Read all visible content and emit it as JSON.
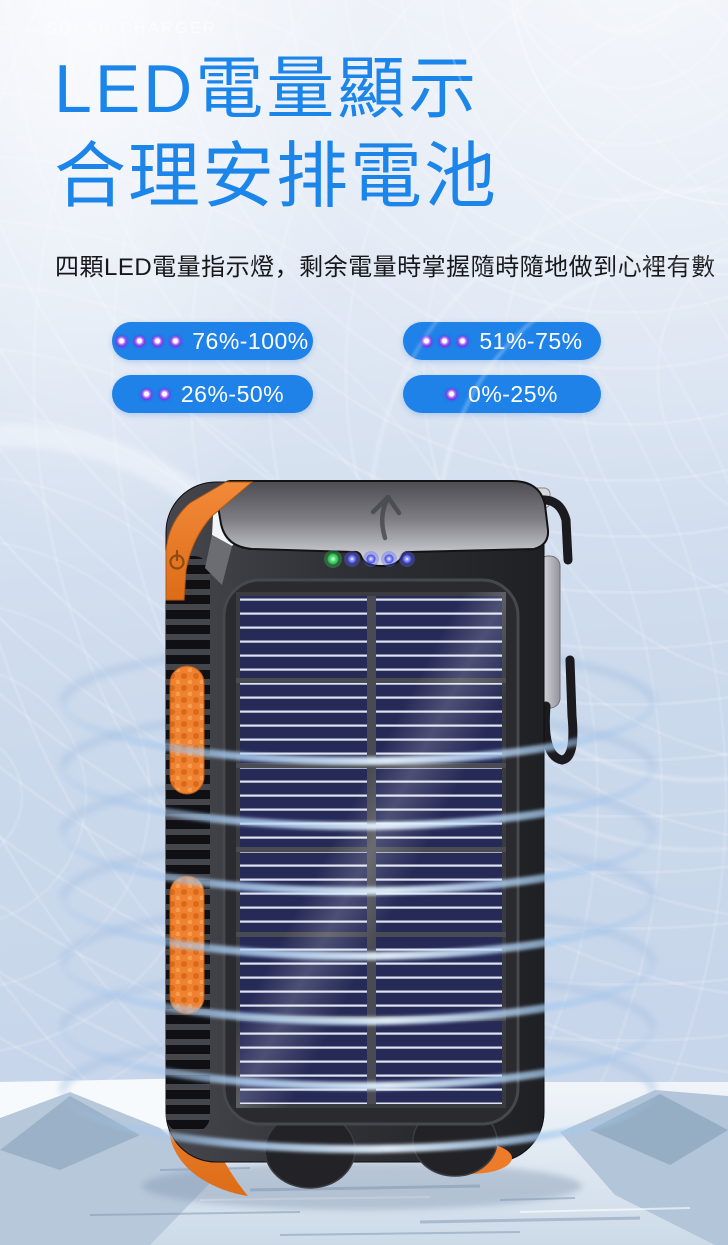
{
  "header": {
    "eyebrow": "SOLAR CHARGER",
    "title_line1": "LED電量顯示",
    "title_line2": "合理安排電池",
    "description": "四顆LED電量指示燈，剩余電量時掌握隨時隨地做到心裡有數"
  },
  "battery_legend": {
    "items": [
      {
        "label": "76%-100%",
        "led_count": 4
      },
      {
        "label": "51%-75%",
        "led_count": 3
      },
      {
        "label": "26%-50%",
        "led_count": 2
      },
      {
        "label": "0%-25%",
        "led_count": 1
      }
    ]
  },
  "product": {
    "name": "solar-charger-power-bank",
    "status_leds": {
      "green": 1,
      "blue": 4
    },
    "features_visible": [
      "solar-panel",
      "carabiner",
      "power-button",
      "orange-grips",
      "flashlight-corner"
    ]
  },
  "colors": {
    "title_blue": "#1b85ea",
    "pill_blue": "#1e82e8",
    "led_dot_violet": "#7e2ee4",
    "accent_orange": "#ee7b2a",
    "panel_navy": "#262a57",
    "led_green": "#35d058",
    "led_blue": "#4953f0",
    "bg_light": "#e9eef7",
    "bg_periwinkle": "#c6d4ea"
  }
}
